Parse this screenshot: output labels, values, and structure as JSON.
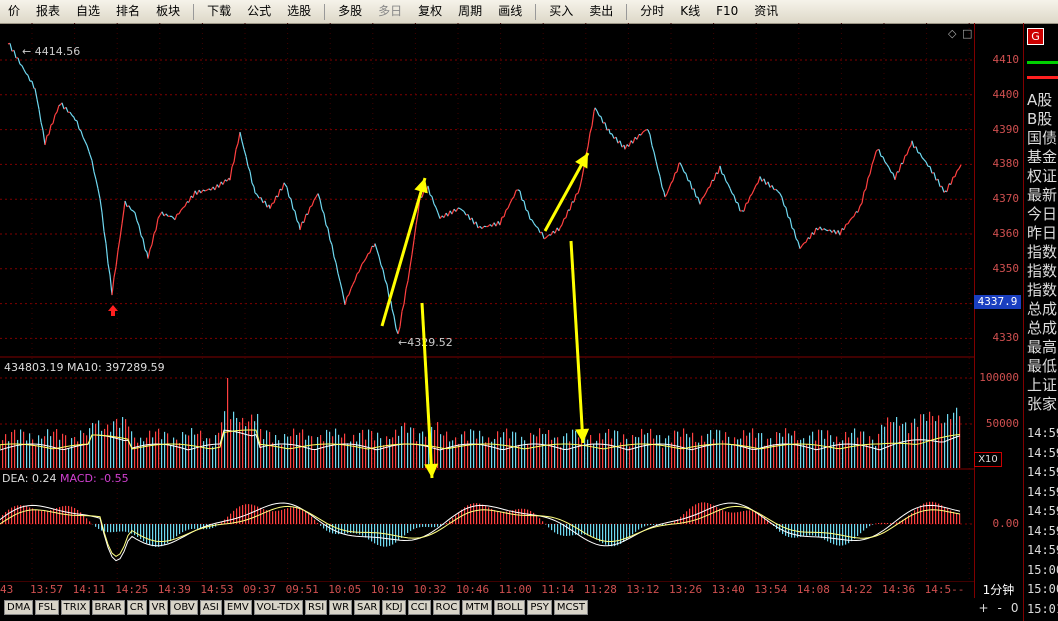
{
  "toolbar": {
    "items": [
      {
        "label": "价",
        "kind": "btn"
      },
      {
        "label": "报表",
        "kind": "btn"
      },
      {
        "label": "自选",
        "kind": "btn"
      },
      {
        "label": "排名",
        "kind": "btn"
      },
      {
        "label": "板块",
        "kind": "btn"
      },
      {
        "kind": "sep"
      },
      {
        "label": "下载",
        "kind": "btn"
      },
      {
        "label": "公式",
        "kind": "btn"
      },
      {
        "label": "选股",
        "kind": "btn"
      },
      {
        "kind": "sep"
      },
      {
        "label": "多股",
        "kind": "btn"
      },
      {
        "label": "多日",
        "kind": "btn",
        "disabled": true
      },
      {
        "label": "复权",
        "kind": "btn"
      },
      {
        "label": "周期",
        "kind": "btn"
      },
      {
        "label": "画线",
        "kind": "btn"
      },
      {
        "kind": "sep"
      },
      {
        "label": "买入",
        "kind": "btn"
      },
      {
        "label": "卖出",
        "kind": "btn"
      },
      {
        "kind": "sep"
      },
      {
        "label": "分时",
        "kind": "btn"
      },
      {
        "label": "K线",
        "kind": "btn"
      },
      {
        "label": "F10",
        "kind": "btn"
      },
      {
        "label": "资讯",
        "kind": "btn"
      }
    ]
  },
  "chart": {
    "price_axis_labels": [
      "4410",
      "4400",
      "4390",
      "4380",
      "4370",
      "4360",
      "4350",
      "4340",
      "4330"
    ],
    "current_price": "4337.9",
    "high_marker": "4414.56",
    "low_marker": "4329.52",
    "volume_info": "434803.19  MA10: 397289.59",
    "volume_axis_labels": [
      "100000",
      "50000"
    ],
    "volume_unit": "X10",
    "macd_dea_label": "DEA: 0.24",
    "macd_label": "MACD: -0.55",
    "macd_axis_label": "0.00",
    "period": "1分钟",
    "time_labels": [
      "43",
      "13:57",
      "14:11",
      "14:25",
      "14:39",
      "14:53",
      "09:37",
      "09:51",
      "10:05",
      "10:19",
      "10:32",
      "10:46",
      "11:00",
      "11:14",
      "11:28",
      "13:12",
      "13:26",
      "13:40",
      "13:54",
      "14:08",
      "14:22",
      "14:36",
      "14:5--"
    ],
    "colors": {
      "up": "#ff4040",
      "down": "#6fd8f0",
      "grid": "#800000",
      "arrow": "#ffff00",
      "macd_up": "#ff4040",
      "macd_down": "#6fd8f0",
      "dea_line": "#ffffff"
    }
  },
  "indicator_tabs": [
    "DMA",
    "FSL",
    "TRIX",
    "BRAR",
    "CR",
    "VR",
    "OBV",
    "ASI",
    "EMV",
    "VOL-TDX",
    "RSI",
    "WR",
    "SAR",
    "KDJ",
    "CCI",
    "ROC",
    "MTM",
    "BOLL",
    "PSY",
    "MCST"
  ],
  "zoom": {
    "plus": "+",
    "minus": "-",
    "zero": "0"
  },
  "right_panel": {
    "badge": "G",
    "items": [
      "A股",
      "B股",
      "国债",
      "基金",
      "权证",
      "最新",
      "今日",
      "昨日",
      "指数",
      "指数",
      "指数",
      "总成",
      "总成",
      "最高",
      "最低",
      "上证",
      "张家"
    ],
    "times": [
      "14:59",
      "14:59",
      "14:59",
      "14:59",
      "14:59",
      "14:59",
      "14:59",
      "15:00",
      "15:00",
      "15:01"
    ]
  }
}
